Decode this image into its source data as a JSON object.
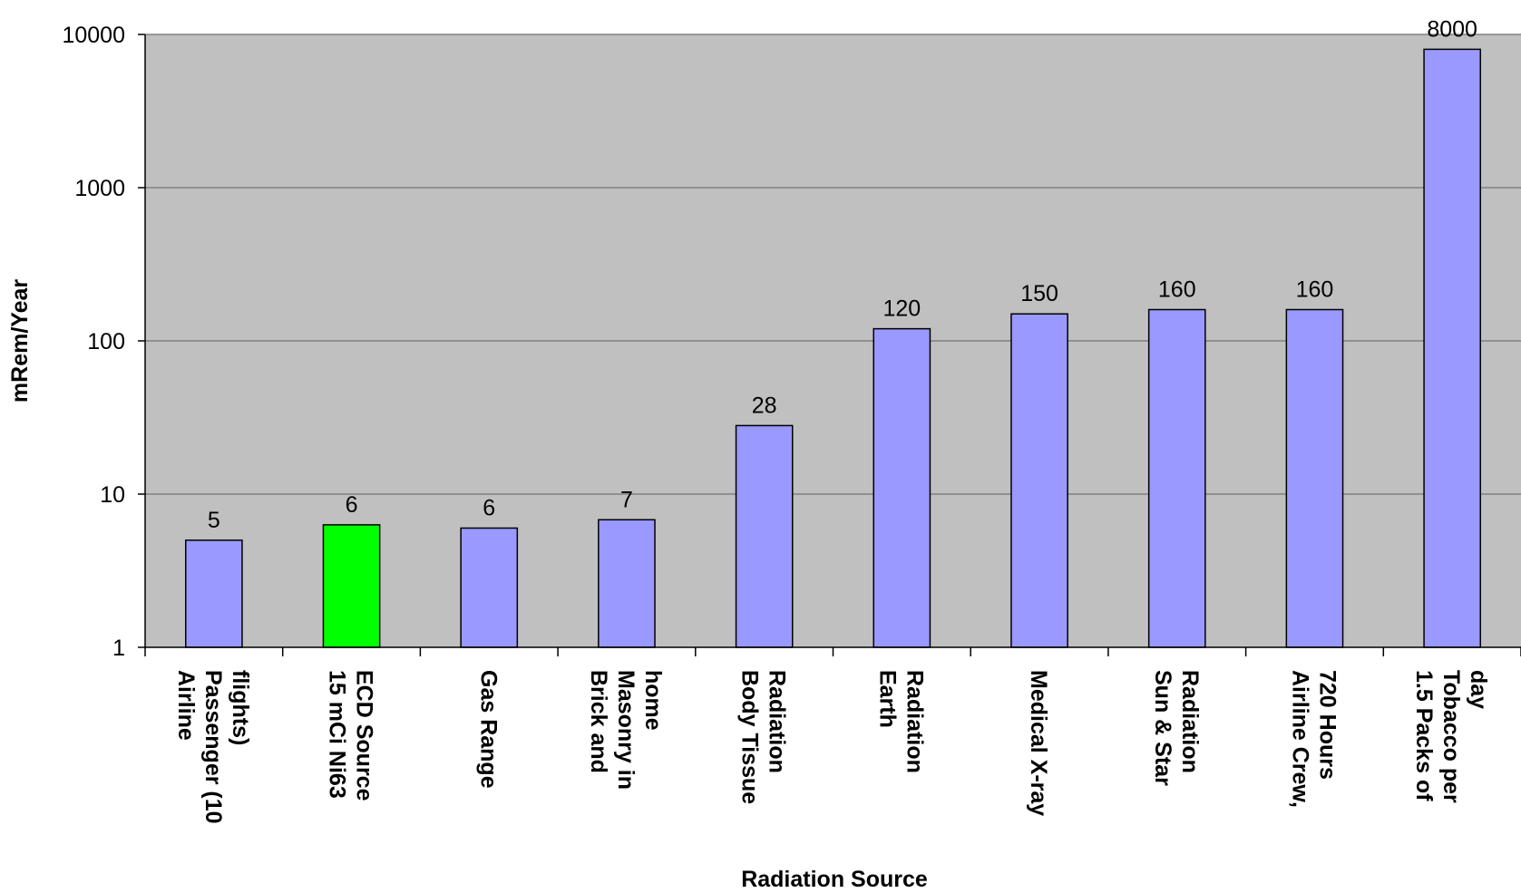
{
  "chart_data": {
    "type": "bar",
    "title": "",
    "xlabel": "Radiation Source",
    "ylabel": "mRem/Year",
    "yscale": "log",
    "ylim": [
      1,
      10000
    ],
    "yticks": [
      "1",
      "10",
      "100",
      "1000",
      "10000"
    ],
    "grid": "horizontal",
    "legend": "none",
    "categories": [
      "Airline Passenger (10 flights)",
      "15 mCi Ni63 ECD Source",
      "Gas Range",
      "Brick and Masonry in home",
      "Body Tissue Radiation",
      "Earth Radiation",
      "Medical X-ray",
      "Sun & Star Radiation",
      "Airline Crew, 720 Hours",
      "1.5 Packs of Tobacco per day"
    ],
    "category_lines": [
      [
        "Airline",
        "Passenger (10",
        "flights)"
      ],
      [
        "15 mCi Ni63",
        "ECD Source"
      ],
      [
        "Gas Range"
      ],
      [
        "Brick and",
        "Masonry in",
        "home"
      ],
      [
        "Body Tissue",
        "Radiation"
      ],
      [
        "Earth",
        "Radiation"
      ],
      [
        "Medical X-ray"
      ],
      [
        "Sun & Star",
        "Radiation"
      ],
      [
        "Airline Crew,",
        "720 Hours"
      ],
      [
        "1.5 Packs of",
        "Tobacco per",
        "day"
      ]
    ],
    "values": [
      5,
      6.3,
      6,
      6.8,
      28,
      120,
      150,
      160,
      160,
      8000
    ],
    "data_labels": [
      "5",
      "6",
      "6",
      "7",
      "28",
      "120",
      "150",
      "160",
      "160",
      "8000"
    ],
    "colors": {
      "plot_background": "#c0c0c0",
      "bar": "#9999ff",
      "highlight_bar": "#00ff00",
      "gridline": "#808080"
    },
    "highlight_index": 1
  }
}
